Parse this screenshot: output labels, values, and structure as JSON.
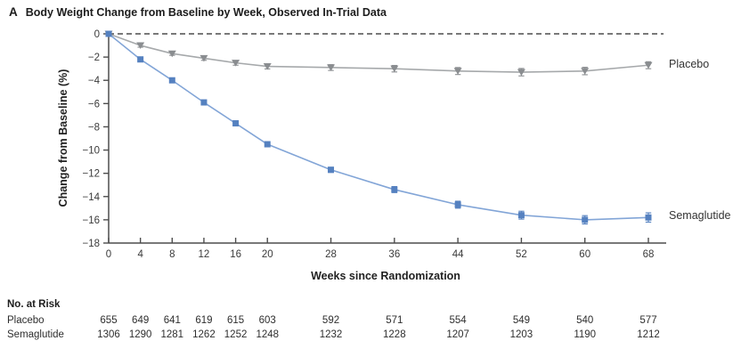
{
  "title": {
    "panel": "A",
    "text": "Body Weight Change from Baseline by Week, Observed In-Trial Data"
  },
  "chart_data": {
    "type": "line",
    "x": [
      0,
      4,
      8,
      12,
      16,
      20,
      28,
      36,
      44,
      52,
      60,
      68
    ],
    "series": [
      {
        "name": "Placebo",
        "values": [
          0,
          -1.0,
          -1.7,
          -2.1,
          -2.5,
          -2.8,
          -2.9,
          -3.0,
          -3.2,
          -3.3,
          -3.2,
          -2.7
        ],
        "errors": [
          0,
          0.15,
          0.15,
          0.18,
          0.2,
          0.22,
          0.25,
          0.28,
          0.3,
          0.32,
          0.32,
          0.3
        ],
        "marker": "triangle-down",
        "marker_color": "#8a8d90",
        "line_color": "#a6a9ab"
      },
      {
        "name": "Semaglutide",
        "values": [
          0,
          -2.2,
          -4.0,
          -5.9,
          -7.7,
          -9.5,
          -11.7,
          -13.4,
          -14.7,
          -15.6,
          -16.0,
          -15.8
        ],
        "errors": [
          0,
          0.12,
          0.14,
          0.16,
          0.18,
          0.2,
          0.22,
          0.26,
          0.3,
          0.34,
          0.36,
          0.4
        ],
        "marker": "square",
        "marker_color": "#5581c0",
        "line_color": "#82a5d7"
      }
    ],
    "xlabel": "Weeks since Randomization",
    "ylabel": "Change from Baseline (%)",
    "ylim": [
      -18,
      0
    ],
    "yticks": [
      0,
      -2,
      -4,
      -6,
      -8,
      -10,
      -12,
      -14,
      -16,
      -18
    ],
    "zero_reference_line": "dashed",
    "grid": false,
    "legend_position": "right-of-line-ends"
  },
  "risk_table": {
    "header": "No. at Risk",
    "rows": [
      {
        "label": "Placebo",
        "values": [
          655,
          649,
          641,
          619,
          615,
          603,
          592,
          571,
          554,
          549,
          540,
          577
        ]
      },
      {
        "label": "Semaglutide",
        "values": [
          1306,
          1290,
          1281,
          1262,
          1252,
          1248,
          1232,
          1228,
          1207,
          1203,
          1190,
          1212
        ]
      }
    ]
  }
}
